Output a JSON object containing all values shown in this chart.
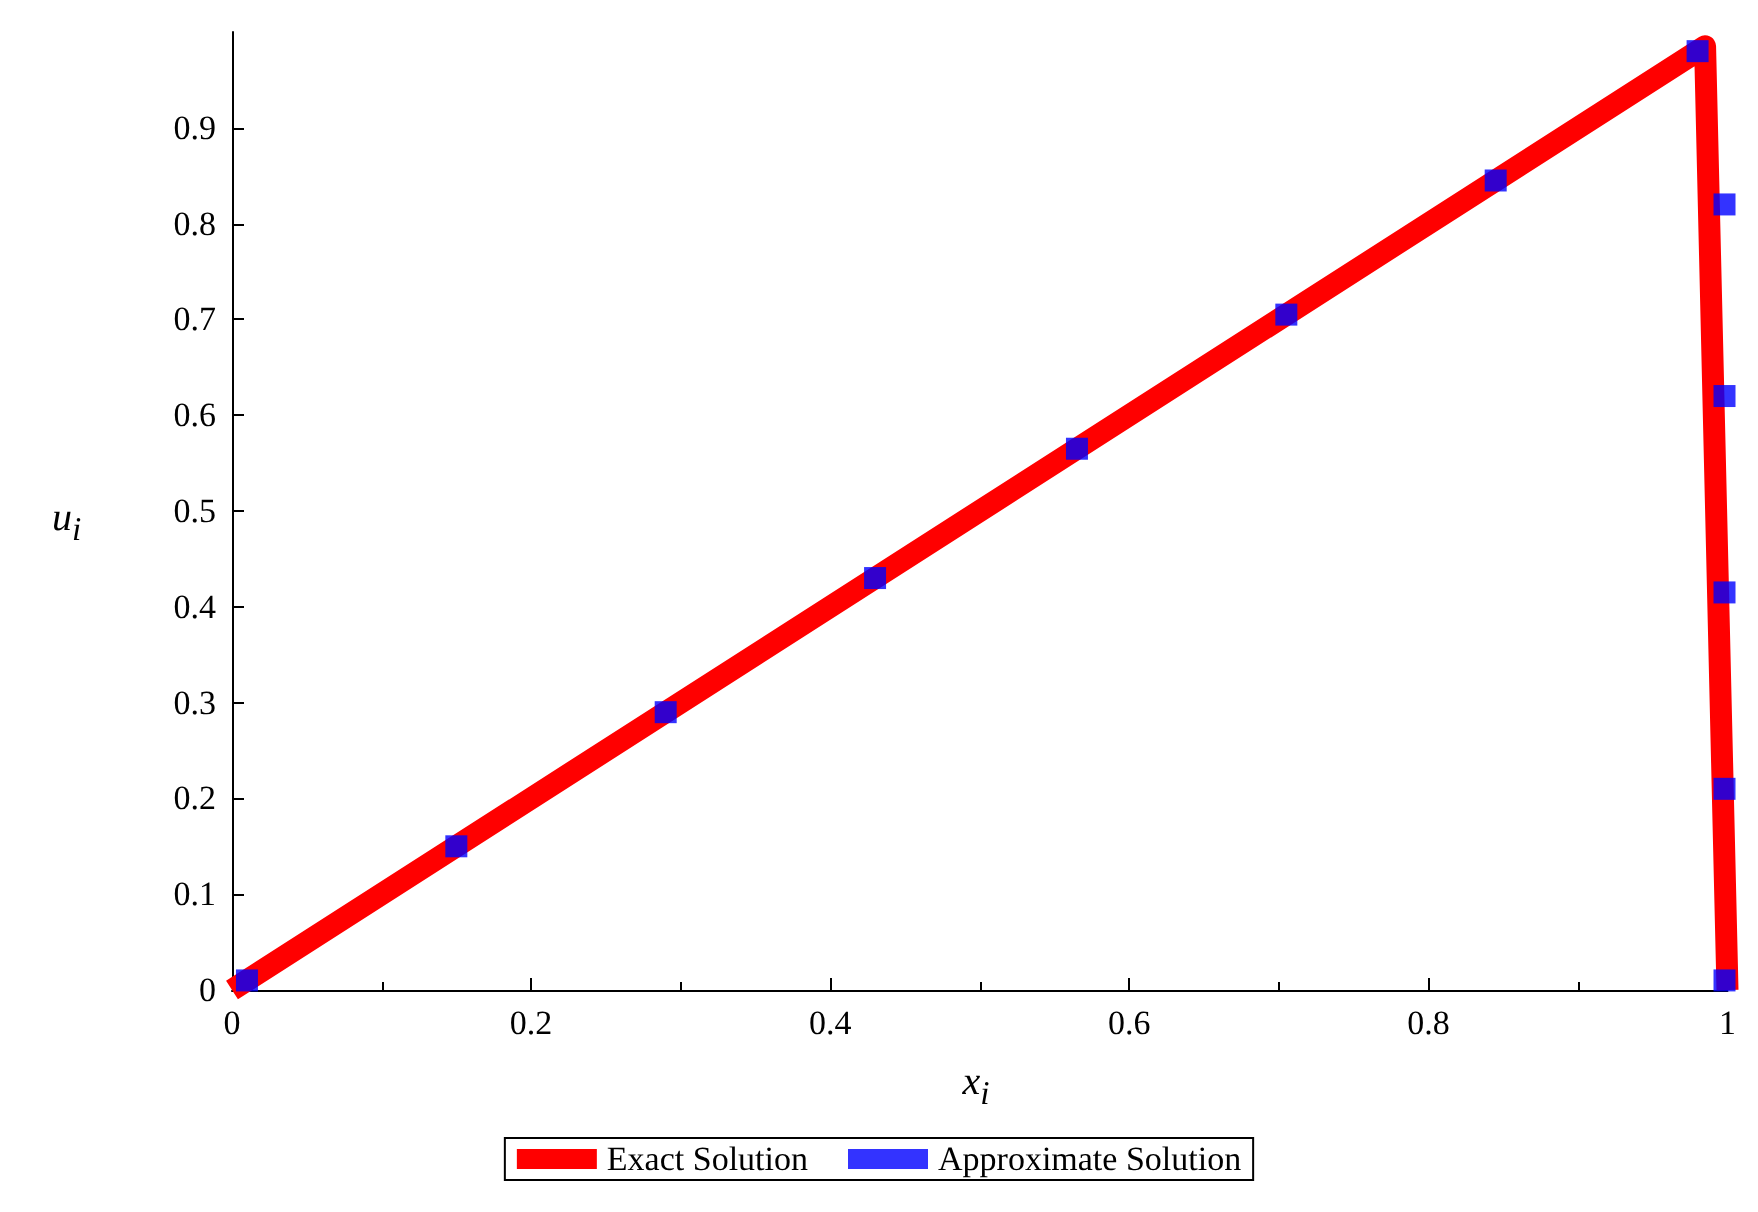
{
  "chart_data": {
    "type": "line",
    "xlabel": "x$_{i}$",
    "ylabel": "u$_{i}$",
    "xlim": [
      0,
      1
    ],
    "xticks": [
      0,
      0.2,
      0.4,
      0.6,
      0.8,
      1
    ],
    "ylim": [
      0,
      1
    ],
    "yticks": [
      0,
      0.1,
      0.2,
      0.3,
      0.4,
      0.5,
      0.6,
      0.7,
      0.8,
      0.9
    ],
    "grid": false,
    "legend": "bottom",
    "series": [
      {
        "name": "Exact Solution",
        "color": "#ff0000",
        "x": [
          0,
          0.985,
          1
        ],
        "values": [
          0,
          0.985,
          0
        ]
      },
      {
        "name": "Approximate Solution",
        "type": "scatter",
        "marker": "square",
        "color": "#0000ff",
        "x": [
          0.01,
          0.15,
          0.29,
          0.43,
          0.565,
          0.705,
          0.845,
          0.98,
          0.998,
          0.998,
          0.998,
          0.998,
          0.998
        ],
        "values": [
          0.01,
          0.15,
          0.29,
          0.43,
          0.565,
          0.705,
          0.845,
          0.98,
          0.82,
          0.62,
          0.415,
          0.21,
          0.01
        ]
      }
    ]
  }
}
